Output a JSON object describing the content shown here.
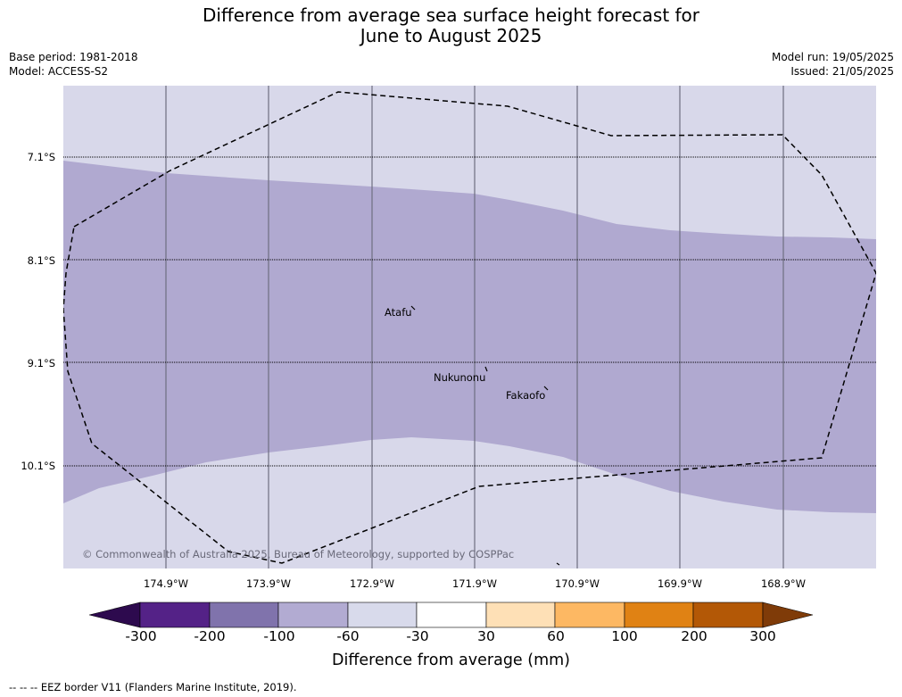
{
  "title": {
    "line1": "Difference from average sea surface height forecast for",
    "line2": "June to August 2025"
  },
  "meta_left": {
    "base_period": "Base period: 1981-2018",
    "model": "Model: ACCESS-S2"
  },
  "meta_right": {
    "model_run": "Model run: 19/05/2025",
    "issued": "Issued: 21/05/2025"
  },
  "map": {
    "latitude_labels": [
      "7.1°S",
      "8.1°S",
      "9.1°S",
      "10.1°S"
    ],
    "longitude_labels": [
      "174.9°W",
      "173.9°W",
      "172.9°W",
      "171.9°W",
      "170.9°W",
      "169.9°W",
      "168.9°W"
    ],
    "places": [
      "Atafu",
      "Nukunonu",
      "Fakaofo"
    ],
    "copyright": "© Commonwealth of Australia 2025, Bureau of Meteorology, supported by COSPPac",
    "fill_categories": [
      {
        "range": "-60 to -30",
        "color": "#d8d8ea"
      },
      {
        "range": "-100 to -60",
        "color": "#b0a9d0"
      }
    ],
    "eez_border_style": "dashed black"
  },
  "colorbar": {
    "title": "Difference from average (mm)",
    "ticks": [
      "-300",
      "-200",
      "-100",
      "-60",
      "-30",
      "30",
      "60",
      "100",
      "200",
      "300"
    ],
    "colors": [
      "#2d0a4e",
      "#542287",
      "#8073ac",
      "#b2abd2",
      "#d8daeb",
      "#ffffff",
      "#fee0b6",
      "#fdb863",
      "#e08214",
      "#b35806",
      "#7f3b08"
    ]
  },
  "footnote": "--  --  -- EEZ border V11 (Flanders Marine Institute, 2019)."
}
